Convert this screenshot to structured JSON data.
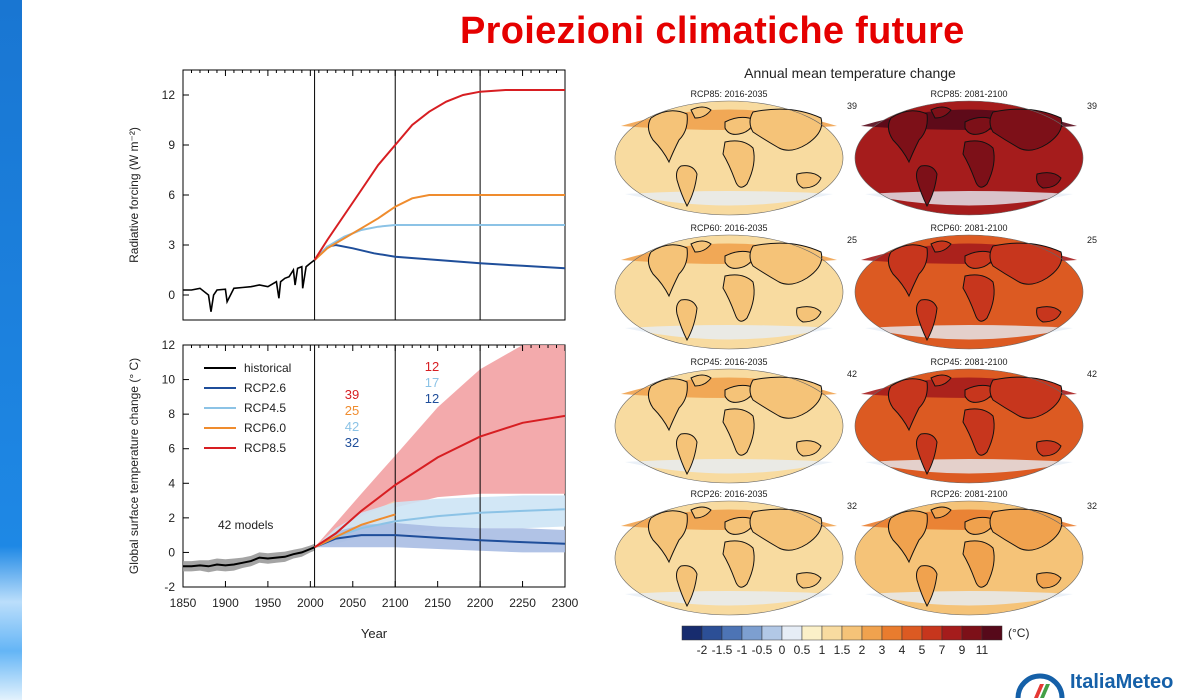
{
  "slide": {
    "title": "Proiezioni climatiche future",
    "logo_text": "ItaliaMeteo"
  },
  "colors": {
    "historical": "#000000",
    "rcp26": "#1f4e9a",
    "rcp45": "#8cc3e6",
    "rcp60": "#ef8c2e",
    "rcp85": "#d71e22",
    "title": "#e50000"
  },
  "chart_data": [
    {
      "type": "line",
      "ylabel": "Radiative  forcing (W m⁻²)",
      "xlim": [
        1850,
        2300
      ],
      "ylim": [
        -1.5,
        13.5
      ],
      "yticks": [
        0,
        3,
        6,
        9,
        12
      ],
      "vlines": [
        2005,
        2100,
        2200
      ],
      "series": [
        {
          "key": "historical",
          "x": [
            1850,
            1860,
            1870,
            1880,
            1883,
            1886,
            1890,
            1900,
            1902,
            1910,
            1920,
            1930,
            1940,
            1950,
            1960,
            1963,
            1965,
            1970,
            1975,
            1980,
            1982,
            1985,
            1990,
            1991,
            1995,
            2000,
            2005
          ],
          "y": [
            0.3,
            0.3,
            0.4,
            0.0,
            -1.0,
            0.0,
            0.3,
            0.35,
            -0.4,
            0.4,
            0.45,
            0.5,
            0.6,
            0.5,
            0.8,
            -0.2,
            0.8,
            1.0,
            1.1,
            1.5,
            0.6,
            1.6,
            1.7,
            0.4,
            1.7,
            1.9,
            2.1
          ]
        },
        {
          "key": "rcp26",
          "x": [
            2005,
            2020,
            2030,
            2050,
            2075,
            2100,
            2150,
            2200,
            2250,
            2300
          ],
          "y": [
            2.1,
            2.9,
            3.0,
            2.8,
            2.5,
            2.3,
            2.1,
            1.9,
            1.75,
            1.6
          ]
        },
        {
          "key": "rcp45",
          "x": [
            2005,
            2020,
            2040,
            2060,
            2080,
            2100,
            2150,
            2200,
            2250,
            2300
          ],
          "y": [
            2.1,
            2.9,
            3.5,
            3.9,
            4.1,
            4.2,
            4.2,
            4.2,
            4.2,
            4.2
          ]
        },
        {
          "key": "rcp60",
          "x": [
            2005,
            2020,
            2040,
            2060,
            2080,
            2100,
            2120,
            2140,
            2150,
            2200,
            2250,
            2300
          ],
          "y": [
            2.1,
            2.8,
            3.4,
            4.0,
            4.6,
            5.3,
            5.8,
            6.0,
            6.0,
            6.0,
            6.0,
            6.0
          ]
        },
        {
          "key": "rcp85",
          "x": [
            2005,
            2020,
            2040,
            2060,
            2080,
            2100,
            2120,
            2140,
            2160,
            2180,
            2200,
            2230,
            2250,
            2300
          ],
          "y": [
            2.1,
            3.3,
            4.8,
            6.3,
            7.8,
            9.0,
            10.2,
            11.0,
            11.6,
            12.0,
            12.2,
            12.3,
            12.3,
            12.3
          ]
        }
      ]
    },
    {
      "type": "area",
      "xlabel": "Year",
      "ylabel": "Global surface temperature change (° C)",
      "xlim": [
        1850,
        2300
      ],
      "ylim": [
        -2,
        12
      ],
      "xticks": [
        1850,
        1900,
        1950,
        2000,
        2050,
        2100,
        2150,
        2200,
        2250,
        2300
      ],
      "yticks": [
        -2,
        0,
        2,
        4,
        6,
        8,
        10,
        12
      ],
      "vlines": [
        2005,
        2100,
        2200
      ],
      "annotation": "42 models",
      "legend": {
        "placement": "top-left",
        "entries": [
          {
            "key": "historical",
            "label": "historical"
          },
          {
            "key": "rcp26",
            "label": "RCP2.6"
          },
          {
            "key": "rcp45",
            "label": "RCP4.5"
          },
          {
            "key": "rcp60",
            "label": "RCP6.0"
          },
          {
            "key": "rcp85",
            "label": "RCP8.5"
          }
        ]
      },
      "model_counts_2100": [
        {
          "key": "rcp85",
          "label": "39"
        },
        {
          "key": "rcp60",
          "label": "25"
        },
        {
          "key": "rcp45",
          "label": "42"
        },
        {
          "key": "rcp26",
          "label": "32"
        }
      ],
      "model_counts_2200": [
        {
          "key": "rcp85",
          "label": "12"
        },
        {
          "key": "rcp45",
          "label": "17"
        },
        {
          "key": "rcp26",
          "label": "12"
        }
      ],
      "series": [
        {
          "key": "historical",
          "x": [
            1850,
            1860,
            1870,
            1880,
            1890,
            1900,
            1910,
            1920,
            1930,
            1940,
            1950,
            1960,
            1970,
            1980,
            1990,
            2000,
            2005
          ],
          "y": [
            -0.8,
            -0.8,
            -0.75,
            -0.8,
            -0.7,
            -0.75,
            -0.7,
            -0.6,
            -0.5,
            -0.3,
            -0.35,
            -0.3,
            -0.25,
            -0.1,
            0.0,
            0.2,
            0.3
          ],
          "band": [
            0.3,
            0.3,
            0.3,
            0.35,
            0.35,
            0.35,
            0.35,
            0.3,
            0.3,
            0.3,
            0.3,
            0.3,
            0.3,
            0.25,
            0.25,
            0.2,
            0.2
          ]
        },
        {
          "key": "rcp26",
          "x": [
            2005,
            2030,
            2060,
            2100,
            2150,
            2200,
            2250,
            2300
          ],
          "y": [
            0.3,
            0.8,
            1.0,
            1.0,
            0.85,
            0.7,
            0.6,
            0.5
          ],
          "lo": [
            0.3,
            0.3,
            0.3,
            0.3,
            0.2,
            0.1,
            0.0,
            0.0
          ],
          "hi": [
            0.3,
            1.2,
            1.6,
            1.7,
            1.5,
            1.4,
            1.4,
            1.3
          ]
        },
        {
          "key": "rcp45",
          "x": [
            2005,
            2030,
            2060,
            2100,
            2150,
            2200,
            2250,
            2300
          ],
          "y": [
            0.3,
            0.9,
            1.4,
            1.8,
            2.1,
            2.3,
            2.4,
            2.5
          ],
          "lo": [
            0.3,
            0.5,
            0.9,
            1.1,
            1.3,
            1.4,
            1.4,
            1.5
          ],
          "hi": [
            0.3,
            1.4,
            2.3,
            2.9,
            3.1,
            3.2,
            3.3,
            3.3
          ]
        },
        {
          "key": "rcp60",
          "x": [
            2005,
            2030,
            2060,
            2100
          ],
          "y": [
            0.3,
            0.9,
            1.6,
            2.2
          ],
          "lo": [
            0.3,
            0.6,
            1.1,
            1.4
          ],
          "hi": [
            0.3,
            1.3,
            2.1,
            3.0
          ]
        },
        {
          "key": "rcp85",
          "x": [
            2005,
            2030,
            2060,
            2100,
            2150,
            2200,
            2250,
            2300
          ],
          "y": [
            0.3,
            1.1,
            2.4,
            3.9,
            5.5,
            6.7,
            7.5,
            7.9
          ],
          "lo": [
            0.3,
            0.6,
            1.7,
            2.6,
            3.2,
            3.4,
            3.4,
            3.4
          ],
          "hi": [
            0.3,
            1.7,
            3.4,
            5.6,
            8.4,
            10.6,
            12.0,
            12.0
          ]
        }
      ]
    },
    {
      "type": "heatmap",
      "title": "Annual mean temperature change",
      "panels": [
        {
          "label": "RCP85: 2016-2035",
          "count": "39",
          "level": 2
        },
        {
          "label": "RCP85: 2081-2100",
          "count": "39",
          "level": 8
        },
        {
          "label": "RCP60: 2016-2035",
          "count": "25",
          "level": 2
        },
        {
          "label": "RCP60: 2081-2100",
          "count": "25",
          "level": 6
        },
        {
          "label": "RCP45: 2016-2035",
          "count": "42",
          "level": 2
        },
        {
          "label": "RCP45: 2081-2100",
          "count": "42",
          "level": 6
        },
        {
          "label": "RCP26: 2016-2035",
          "count": "32",
          "level": 2
        },
        {
          "label": "RCP26: 2081-2100",
          "count": "32",
          "level": 3
        }
      ],
      "colorbar": {
        "unit": "(°C)",
        "labels": [
          "-2",
          "-1.5",
          "-1",
          "-0.5",
          "0",
          "0.5",
          "1",
          "1.5",
          "2",
          "3",
          "4",
          "5",
          "7",
          "9",
          "11"
        ],
        "colors": [
          "#172c6e",
          "#2c4f96",
          "#4d74b5",
          "#7d9fd0",
          "#b2c8e6",
          "#e6edf6",
          "#fbf0c8",
          "#f8dba0",
          "#f5c378",
          "#f0a24e",
          "#e97c2e",
          "#dc5a22",
          "#c7361d",
          "#a51c1c",
          "#7d1018",
          "#56091a"
        ]
      }
    }
  ]
}
